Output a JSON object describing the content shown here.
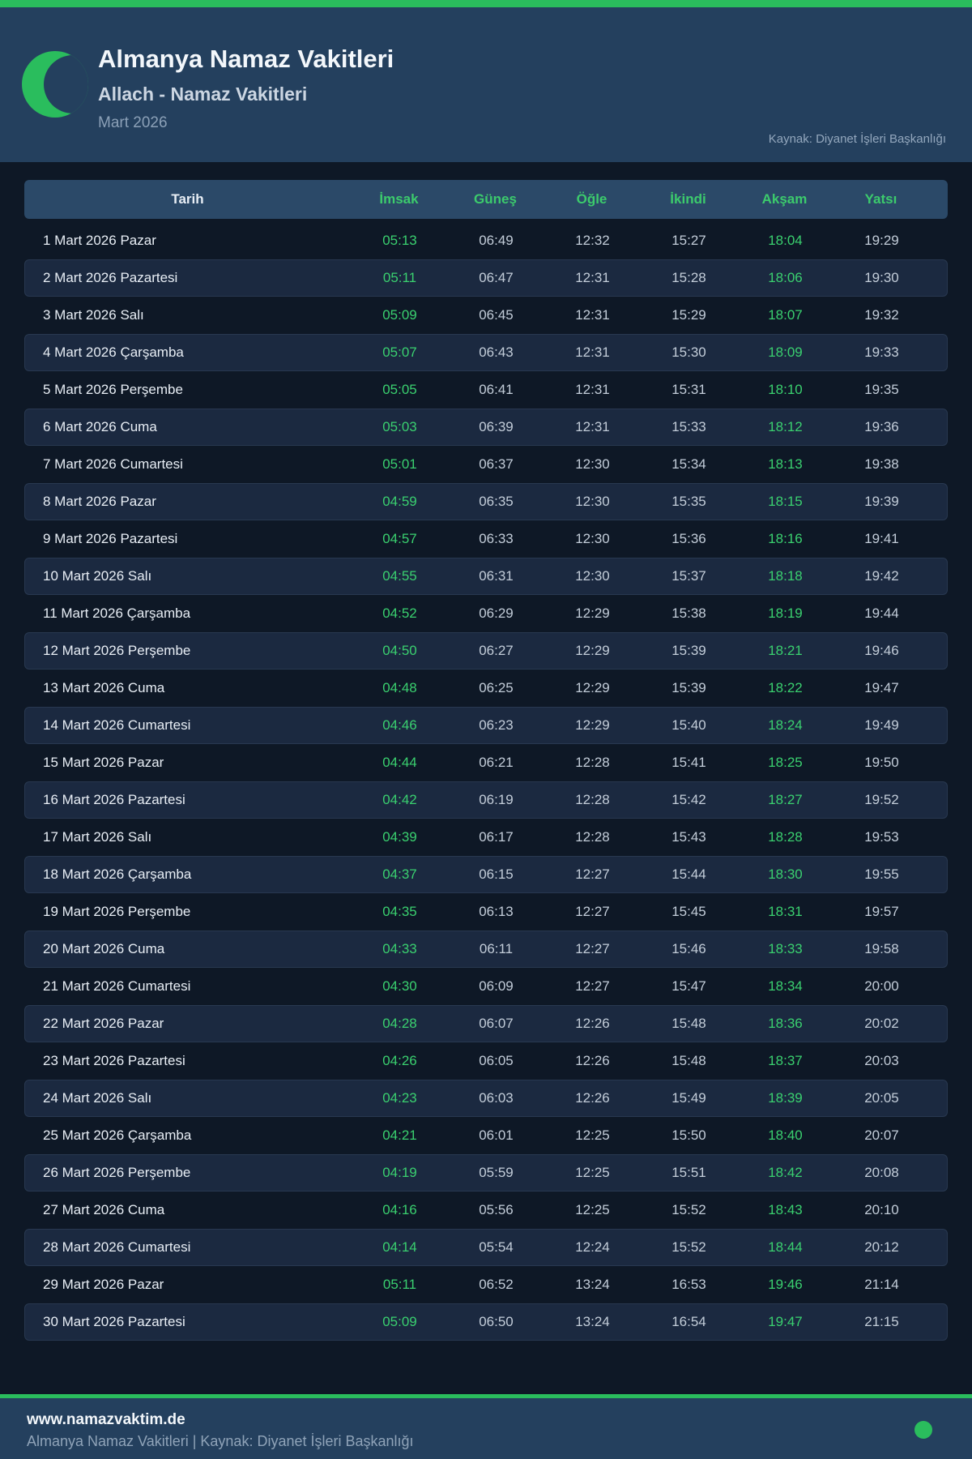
{
  "header": {
    "title": "Almanya Namaz Vakitleri",
    "subtitle": "Allach - Namaz Vakitleri",
    "month": "Mart 2026",
    "source": "Kaynak: Diyanet İşleri Başkanlığı",
    "icon": "crescent-moon-icon"
  },
  "colors": {
    "accent_green": "#2abd5d",
    "time_green": "#3ad06f",
    "header_label_green": "#3ccb6c",
    "header_bg": "#24405e",
    "table_head_bg": "#2b4968",
    "stripe_bg": "#1b2940",
    "page_bg": "#0e1826"
  },
  "table": {
    "columns": [
      "Tarih",
      "İmsak",
      "Güneş",
      "Öğle",
      "İkindi",
      "Akşam",
      "Yatsı"
    ],
    "green_time_columns": [
      "İmsak",
      "Akşam"
    ],
    "rows": [
      {
        "date": "1 Mart 2026 Pazar",
        "times": [
          "05:13",
          "06:49",
          "12:32",
          "15:27",
          "18:04",
          "19:29"
        ]
      },
      {
        "date": "2 Mart 2026 Pazartesi",
        "times": [
          "05:11",
          "06:47",
          "12:31",
          "15:28",
          "18:06",
          "19:30"
        ]
      },
      {
        "date": "3 Mart 2026 Salı",
        "times": [
          "05:09",
          "06:45",
          "12:31",
          "15:29",
          "18:07",
          "19:32"
        ]
      },
      {
        "date": "4 Mart 2026 Çarşamba",
        "times": [
          "05:07",
          "06:43",
          "12:31",
          "15:30",
          "18:09",
          "19:33"
        ]
      },
      {
        "date": "5 Mart 2026 Perşembe",
        "times": [
          "05:05",
          "06:41",
          "12:31",
          "15:31",
          "18:10",
          "19:35"
        ]
      },
      {
        "date": "6 Mart 2026 Cuma",
        "times": [
          "05:03",
          "06:39",
          "12:31",
          "15:33",
          "18:12",
          "19:36"
        ]
      },
      {
        "date": "7 Mart 2026 Cumartesi",
        "times": [
          "05:01",
          "06:37",
          "12:30",
          "15:34",
          "18:13",
          "19:38"
        ]
      },
      {
        "date": "8 Mart 2026 Pazar",
        "times": [
          "04:59",
          "06:35",
          "12:30",
          "15:35",
          "18:15",
          "19:39"
        ]
      },
      {
        "date": "9 Mart 2026 Pazartesi",
        "times": [
          "04:57",
          "06:33",
          "12:30",
          "15:36",
          "18:16",
          "19:41"
        ]
      },
      {
        "date": "10 Mart 2026 Salı",
        "times": [
          "04:55",
          "06:31",
          "12:30",
          "15:37",
          "18:18",
          "19:42"
        ]
      },
      {
        "date": "11 Mart 2026 Çarşamba",
        "times": [
          "04:52",
          "06:29",
          "12:29",
          "15:38",
          "18:19",
          "19:44"
        ]
      },
      {
        "date": "12 Mart 2026 Perşembe",
        "times": [
          "04:50",
          "06:27",
          "12:29",
          "15:39",
          "18:21",
          "19:46"
        ]
      },
      {
        "date": "13 Mart 2026 Cuma",
        "times": [
          "04:48",
          "06:25",
          "12:29",
          "15:39",
          "18:22",
          "19:47"
        ]
      },
      {
        "date": "14 Mart 2026 Cumartesi",
        "times": [
          "04:46",
          "06:23",
          "12:29",
          "15:40",
          "18:24",
          "19:49"
        ]
      },
      {
        "date": "15 Mart 2026 Pazar",
        "times": [
          "04:44",
          "06:21",
          "12:28",
          "15:41",
          "18:25",
          "19:50"
        ]
      },
      {
        "date": "16 Mart 2026 Pazartesi",
        "times": [
          "04:42",
          "06:19",
          "12:28",
          "15:42",
          "18:27",
          "19:52"
        ]
      },
      {
        "date": "17 Mart 2026 Salı",
        "times": [
          "04:39",
          "06:17",
          "12:28",
          "15:43",
          "18:28",
          "19:53"
        ]
      },
      {
        "date": "18 Mart 2026 Çarşamba",
        "times": [
          "04:37",
          "06:15",
          "12:27",
          "15:44",
          "18:30",
          "19:55"
        ]
      },
      {
        "date": "19 Mart 2026 Perşembe",
        "times": [
          "04:35",
          "06:13",
          "12:27",
          "15:45",
          "18:31",
          "19:57"
        ]
      },
      {
        "date": "20 Mart 2026 Cuma",
        "times": [
          "04:33",
          "06:11",
          "12:27",
          "15:46",
          "18:33",
          "19:58"
        ]
      },
      {
        "date": "21 Mart 2026 Cumartesi",
        "times": [
          "04:30",
          "06:09",
          "12:27",
          "15:47",
          "18:34",
          "20:00"
        ]
      },
      {
        "date": "22 Mart 2026 Pazar",
        "times": [
          "04:28",
          "06:07",
          "12:26",
          "15:48",
          "18:36",
          "20:02"
        ]
      },
      {
        "date": "23 Mart 2026 Pazartesi",
        "times": [
          "04:26",
          "06:05",
          "12:26",
          "15:48",
          "18:37",
          "20:03"
        ]
      },
      {
        "date": "24 Mart 2026 Salı",
        "times": [
          "04:23",
          "06:03",
          "12:26",
          "15:49",
          "18:39",
          "20:05"
        ]
      },
      {
        "date": "25 Mart 2026 Çarşamba",
        "times": [
          "04:21",
          "06:01",
          "12:25",
          "15:50",
          "18:40",
          "20:07"
        ]
      },
      {
        "date": "26 Mart 2026 Perşembe",
        "times": [
          "04:19",
          "05:59",
          "12:25",
          "15:51",
          "18:42",
          "20:08"
        ]
      },
      {
        "date": "27 Mart 2026 Cuma",
        "times": [
          "04:16",
          "05:56",
          "12:25",
          "15:52",
          "18:43",
          "20:10"
        ]
      },
      {
        "date": "28 Mart 2026 Cumartesi",
        "times": [
          "04:14",
          "05:54",
          "12:24",
          "15:52",
          "18:44",
          "20:12"
        ]
      },
      {
        "date": "29 Mart 2026 Pazar",
        "times": [
          "05:11",
          "06:52",
          "13:24",
          "16:53",
          "19:46",
          "21:14"
        ]
      },
      {
        "date": "30 Mart 2026 Pazartesi",
        "times": [
          "05:09",
          "06:50",
          "13:24",
          "16:54",
          "19:47",
          "21:15"
        ]
      }
    ]
  },
  "footer": {
    "site": "www.namazvaktim.de",
    "line": "Almanya Namaz Vakitleri | Kaynak: Diyanet İşleri Başkanlığı"
  }
}
